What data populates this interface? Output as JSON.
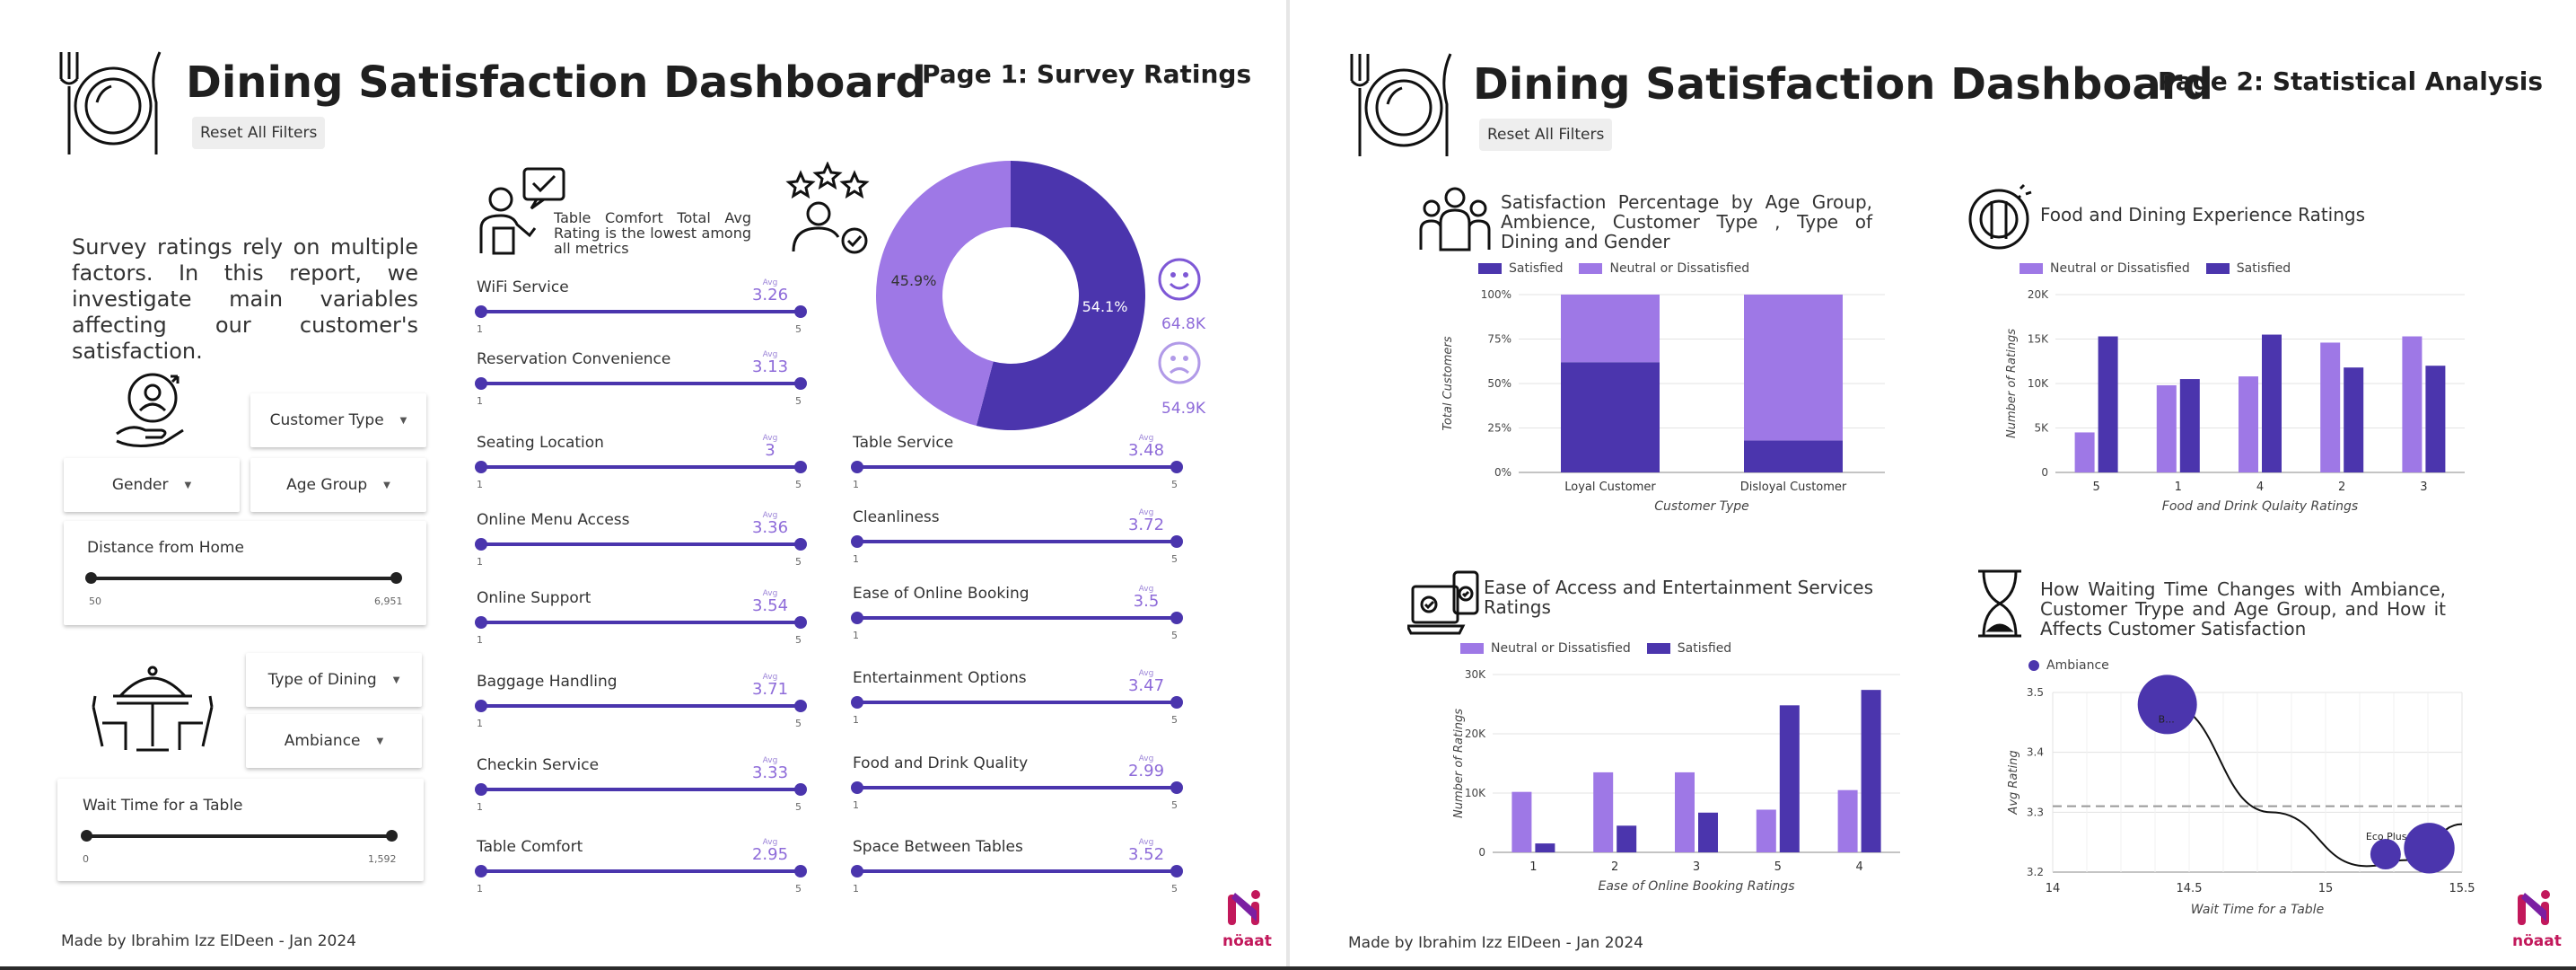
{
  "colors": {
    "dark": "#4b35ad",
    "light": "#9e78e6",
    "track": "#4a35ad",
    "grid": "#e3e3e3"
  },
  "page1": {
    "title": "Dining Satisfaction Dashboard",
    "page_title": "Page 1: Survey Ratings",
    "reset_label": "Reset All Filters",
    "intro": "Survey ratings rely on multiple factors. In this report, we investigate main variables affecting our customer's satisfaction.",
    "filters": {
      "customer_type": "Customer Type",
      "gender": "Gender",
      "age_group": "Age Group",
      "type_of_dining": "Type of Dining",
      "ambiance": "Ambiance"
    },
    "distance_slider": {
      "label": "Distance from Home",
      "min": "50",
      "max": "6,951"
    },
    "wait_slider": {
      "label": "Wait Time for a Table",
      "min": "0",
      "max": "1,592"
    },
    "insight": "Table Comfort Total Avg Rating is the lowest among all metrics",
    "avg_label": "Avg",
    "scale_min": "1",
    "scale_max": "5",
    "ratings_left": [
      {
        "label": "WiFi Service",
        "value": "3.26"
      },
      {
        "label": "Reservation Convenience",
        "value": "3.13"
      },
      {
        "label": "Seating Location",
        "value": "3"
      },
      {
        "label": "Online Menu Access",
        "value": "3.36"
      },
      {
        "label": "Online Support",
        "value": "3.54"
      },
      {
        "label": "Baggage Handling",
        "value": "3.71"
      },
      {
        "label": "Checkin Service",
        "value": "3.33"
      },
      {
        "label": "Table Comfort",
        "value": "2.95"
      }
    ],
    "ratings_right": [
      {
        "label": "Table Service",
        "value": "3.48"
      },
      {
        "label": "Cleanliness",
        "value": "3.72"
      },
      {
        "label": "Ease of Online Booking",
        "value": "3.5"
      },
      {
        "label": "Entertainment Options",
        "value": "3.47"
      },
      {
        "label": "Food and Drink Quality",
        "value": "2.99"
      },
      {
        "label": "Space Between Tables",
        "value": "3.52"
      }
    ],
    "donut": {
      "satisfied_pct": "54.1%",
      "neutral_pct": "45.9%",
      "satisfied_count": "64.8K",
      "neutral_count": "54.9K"
    },
    "footer": "Made by Ibrahim Izz ElDeen - Jan 2024",
    "logo_text": "nöaat"
  },
  "page2": {
    "title": "Dining Satisfaction Dashboard",
    "page_title": "Page 2: Statistical Analysis",
    "reset_label": "Reset All Filters",
    "footer": "Made by Ibrahim Izz ElDeen - Jan 2024",
    "logo_text": "nöaat",
    "sections": {
      "pct_title": "Satisfaction Percentage by Age Group, Ambience, Customer Type , Type of Dining and Gender",
      "food_title": "Food and Dining Experience Ratings",
      "ease_title": "Ease of Access and Entertainment Services Ratings",
      "wait_title": "How Waiting Time Changes with Ambiance, Customer Trype and Age Group, and How it Affects Customer Satisfaction"
    }
  },
  "chart_data": [
    {
      "type": "pie",
      "categories": [
        "Satisfied",
        "Neutral or Dissatisfied"
      ],
      "values": [
        54.1,
        45.9
      ],
      "counts": [
        "64.8K",
        "54.9K"
      ]
    },
    {
      "type": "bar",
      "stacked": true,
      "categories": [
        "Loyal Customer",
        "Disloyal Customer"
      ],
      "series": [
        {
          "name": "Satisfied",
          "values": [
            62,
            18
          ]
        },
        {
          "name": "Neutral or Dissatisfied",
          "values": [
            38,
            82
          ]
        }
      ],
      "xlabel": "Customer Type",
      "ylabel": "Total Customers",
      "yticks": [
        "0%",
        "25%",
        "50%",
        "75%",
        "100%"
      ],
      "ylim": [
        0,
        100
      ],
      "legend": "top-left"
    },
    {
      "type": "bar",
      "categories": [
        "5",
        "1",
        "4",
        "2",
        "3"
      ],
      "series": [
        {
          "name": "Neutral or Dissatisfied",
          "values": [
            4500,
            9800,
            10800,
            14600,
            15300
          ]
        },
        {
          "name": "Satisfied",
          "values": [
            15300,
            10500,
            15500,
            11800,
            12000
          ]
        }
      ],
      "xlabel": "Food and Drink Qulaity Ratings",
      "ylabel": "Number of Ratings",
      "yticks": [
        "0",
        "5K",
        "10K",
        "15K",
        "20K"
      ],
      "ylim": [
        0,
        20000
      ],
      "legend": "top-left"
    },
    {
      "type": "bar",
      "categories": [
        "1",
        "2",
        "3",
        "5",
        "4"
      ],
      "series": [
        {
          "name": "Neutral or Dissatisfied",
          "values": [
            10200,
            13500,
            13500,
            7200,
            10500
          ]
        },
        {
          "name": "Satisfied",
          "values": [
            1500,
            4500,
            6700,
            24800,
            27400
          ]
        }
      ],
      "xlabel": "Ease of Online Booking Ratings",
      "ylabel": "Number of Ratings",
      "yticks": [
        "0",
        "10K",
        "20K",
        "30K"
      ],
      "ylim": [
        0,
        30000
      ],
      "legend": "top-left"
    },
    {
      "type": "scatter",
      "series": [
        {
          "name": "Ambiance",
          "points": [
            {
              "x": 14.42,
              "y": 3.48,
              "size": 3,
              "label": "B..."
            },
            {
              "x": 15.22,
              "y": 3.23,
              "size": 1,
              "label": "Eco Plus"
            },
            {
              "x": 15.38,
              "y": 3.24,
              "size": 2.4,
              "label": ""
            }
          ]
        }
      ],
      "trend": [
        [
          14.42,
          3.48
        ],
        [
          14.8,
          3.3
        ],
        [
          15.15,
          3.21
        ],
        [
          15.3,
          3.22
        ],
        [
          15.5,
          3.28
        ]
      ],
      "reference_y": 3.31,
      "xlabel": "Wait Time for a Table",
      "ylabel": "Avg Rating",
      "xticks": [
        "14",
        "14.5",
        "15",
        "15.5"
      ],
      "yticks": [
        "3.2",
        "3.3",
        "3.4",
        "3.5"
      ],
      "xlim": [
        14,
        15.5
      ],
      "ylim": [
        3.2,
        3.5
      ],
      "legend": "top-left"
    }
  ]
}
